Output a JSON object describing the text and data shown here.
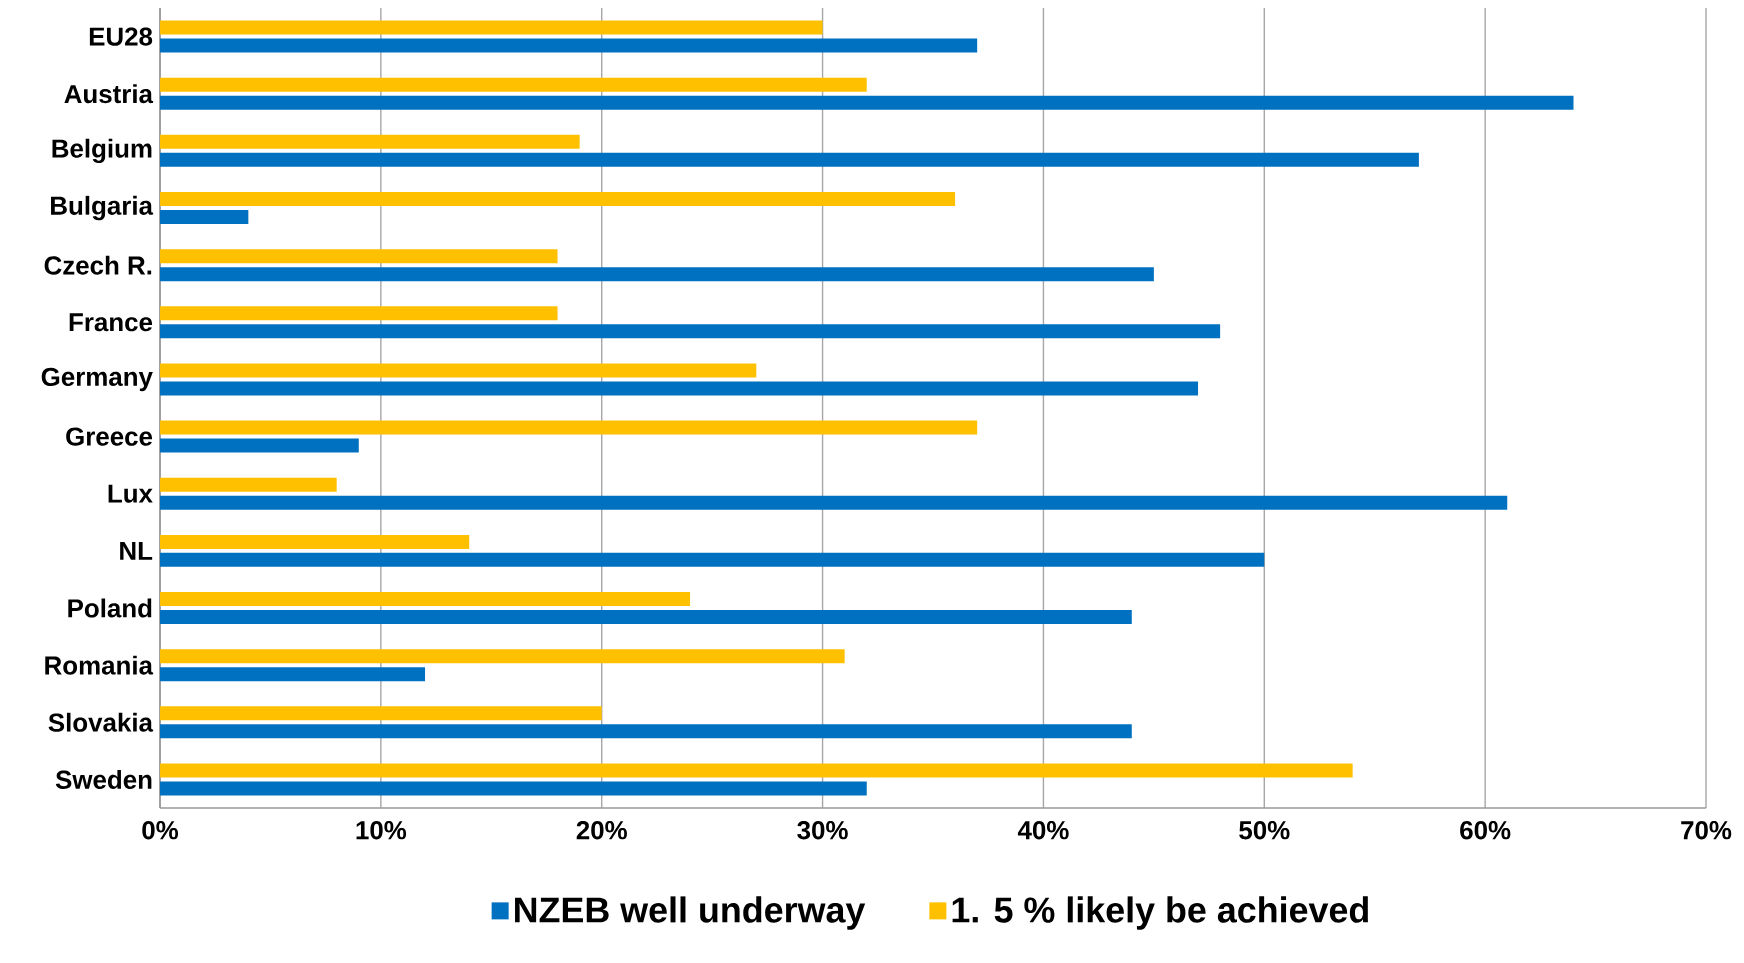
{
  "chart_data": {
    "type": "bar",
    "orientation": "horizontal",
    "categories": [
      "EU28",
      "Austria",
      "Belgium",
      "Bulgaria",
      "Czech R.",
      "France",
      "Germany",
      "Greece",
      "Lux",
      "NL",
      "Poland",
      "Romania",
      "Slovakia",
      "Sweden"
    ],
    "series": [
      {
        "name": "NZEB well underway",
        "color": "#0070c0",
        "values": [
          37,
          64,
          57,
          4,
          45,
          48,
          47,
          9,
          61,
          50,
          44,
          12,
          44,
          32
        ]
      },
      {
        "name": "1. 5 % likely be achieved",
        "color": "#ffc000",
        "values": [
          30,
          32,
          19,
          36,
          18,
          18,
          27,
          37,
          8,
          14,
          24,
          31,
          20,
          54
        ]
      }
    ],
    "xlim": [
      0,
      70
    ],
    "xticks": [
      {
        "value": 0,
        "label": "0%"
      },
      {
        "value": 10,
        "label": "10%"
      },
      {
        "value": 20,
        "label": "20%"
      },
      {
        "value": 30,
        "label": "30%"
      },
      {
        "value": 40,
        "label": "40%"
      },
      {
        "value": 50,
        "label": "50%"
      },
      {
        "value": 60,
        "label": "60%"
      },
      {
        "value": 70,
        "label": "70%"
      }
    ],
    "grid": "x",
    "legend": "bottom"
  }
}
